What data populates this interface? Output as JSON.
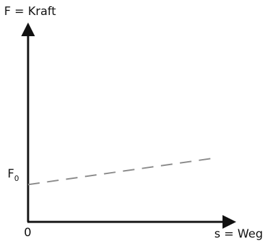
{
  "chart_data": {
    "type": "line",
    "title": "",
    "ylabel": "F = Kraft",
    "xlabel": "s = Weg",
    "origin_label": "0",
    "y_tick_label": {
      "base": "F",
      "subscript": "0"
    },
    "xlim": [
      0,
      10
    ],
    "ylim": [
      0,
      10
    ],
    "grid": false,
    "series": [
      {
        "style": "dashed",
        "color": "#8a8a8a",
        "x": [
          0,
          10
        ],
        "y": [
          2,
          3.4
        ]
      }
    ]
  },
  "colors": {
    "axes": "#111111",
    "line": "#8a8a8a",
    "background": "#ffffff"
  }
}
